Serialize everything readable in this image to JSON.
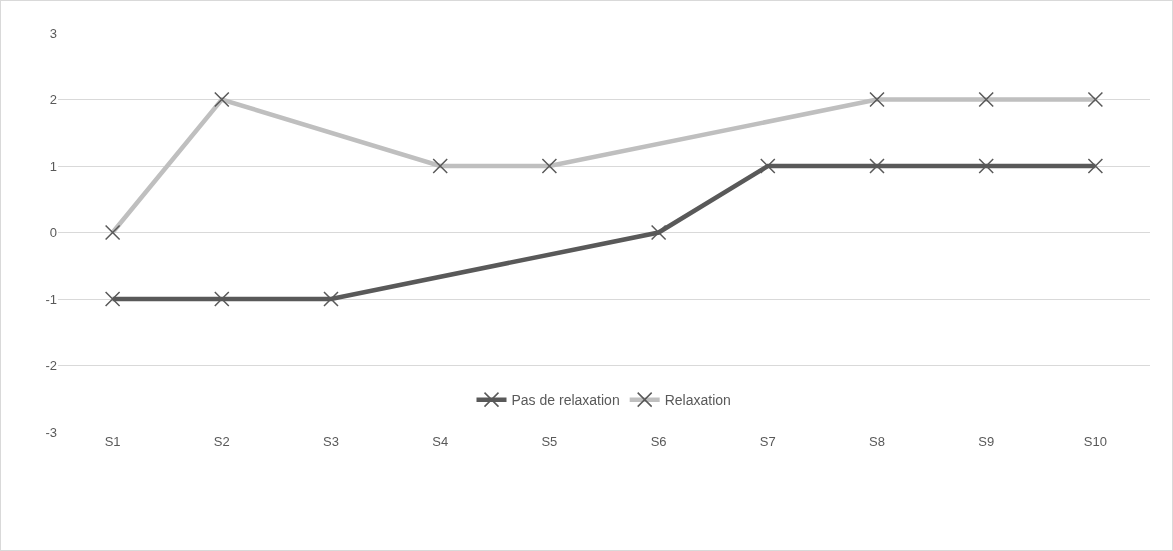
{
  "chart_data": {
    "type": "line",
    "categories": [
      "S1",
      "S2",
      "S3",
      "S4",
      "S5",
      "S6",
      "S7",
      "S8",
      "S9",
      "S10"
    ],
    "series": [
      {
        "name": "Pas de relaxation",
        "color": "#595959",
        "values": [
          -1,
          -1,
          -1,
          null,
          null,
          0,
          1,
          1,
          1,
          1
        ]
      },
      {
        "name": "Relaxation",
        "color": "#bfbfbf",
        "values": [
          0,
          2,
          null,
          1,
          1,
          null,
          null,
          2,
          2,
          2
        ]
      }
    ],
    "ylim": [
      -3,
      3
    ],
    "yticks": [
      -3,
      -2,
      -1,
      0,
      1,
      2,
      3
    ],
    "grid": "y",
    "legend": "bottom",
    "marker": "cross",
    "line_style": "solid"
  }
}
